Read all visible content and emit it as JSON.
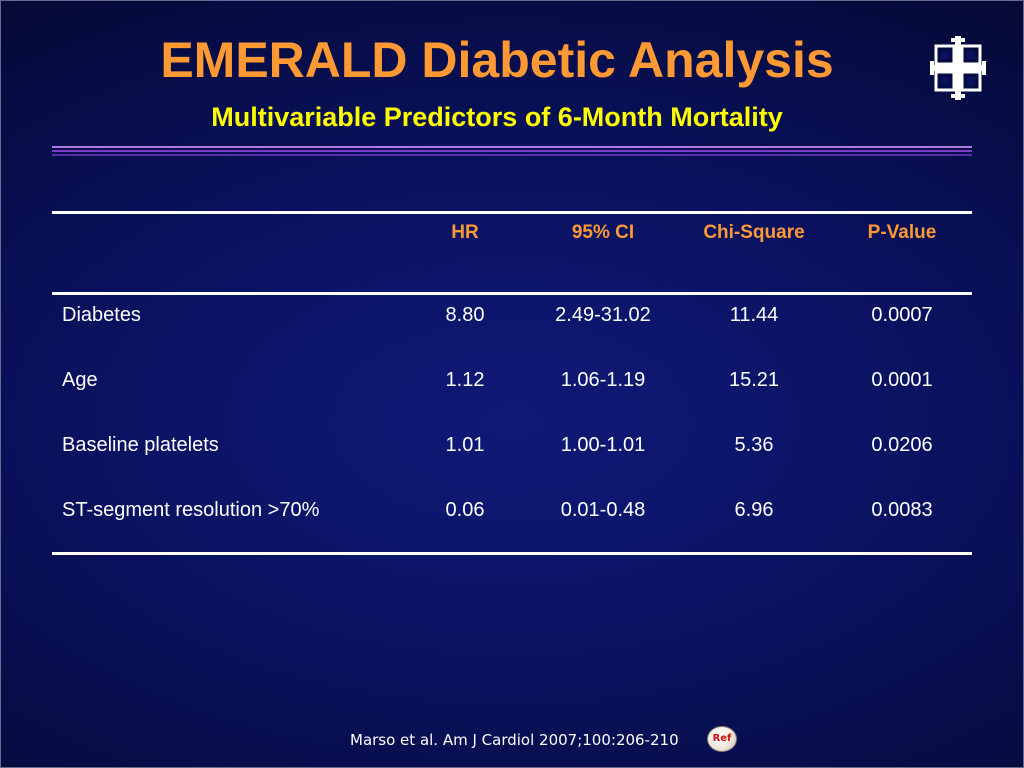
{
  "slide": {
    "title": "EMERALD Diabetic Analysis",
    "subtitle": "Multivariable Predictors of 6-Month Mortality",
    "logo_icon": "cross-emblem-icon"
  },
  "table": {
    "headers": [
      "",
      "HR",
      "95% CI",
      "Chi-Square",
      "P-Value"
    ],
    "rows": [
      {
        "label": "Diabetes",
        "hr": "8.80",
        "ci": "2.49-31.02",
        "chi": "11.44",
        "p": "0.0007"
      },
      {
        "label": "Age",
        "hr": "1.12",
        "ci": "1.06-1.19",
        "chi": "15.21",
        "p": "0.0001"
      },
      {
        "label": "Baseline platelets",
        "hr": "1.01",
        "ci": "1.00-1.01",
        "chi": "5.36",
        "p": "0.0206"
      },
      {
        "label": "ST-segment resolution >70%",
        "hr": "0.06",
        "ci": "0.01-0.48",
        "chi": "6.96",
        "p": "0.0083"
      }
    ]
  },
  "footer": {
    "citation": "Marso et al. Am J Cardiol 2007;100:206-210",
    "ref_label": "Ref"
  },
  "colors": {
    "title": "#ff9933",
    "subtitle": "#ffff00",
    "header": "#ff9933",
    "text": "#ffffff",
    "background": "#0a1260"
  }
}
